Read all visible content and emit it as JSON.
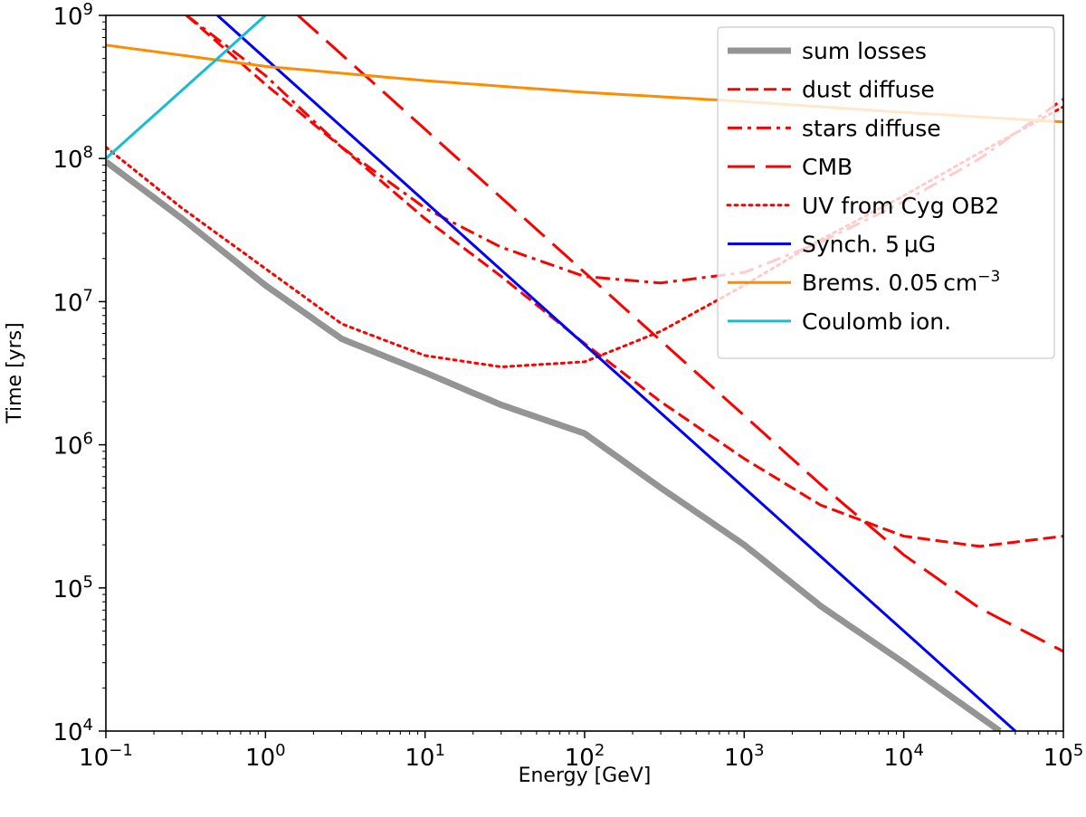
{
  "chart_data": {
    "type": "line",
    "title": "",
    "xlabel": "Energy [GeV]",
    "ylabel": "Time [yrs]",
    "xscale": "log",
    "yscale": "log",
    "xlim": [
      0.1,
      100000
    ],
    "ylim": [
      10000,
      1000000000
    ],
    "grid": false,
    "legend_position": "top-right",
    "x_ticks": [
      {
        "base": "10",
        "exp": "−1",
        "value": 0.1
      },
      {
        "base": "10",
        "exp": "0",
        "value": 1
      },
      {
        "base": "10",
        "exp": "1",
        "value": 10
      },
      {
        "base": "10",
        "exp": "2",
        "value": 100
      },
      {
        "base": "10",
        "exp": "3",
        "value": 1000
      },
      {
        "base": "10",
        "exp": "4",
        "value": 10000
      },
      {
        "base": "10",
        "exp": "5",
        "value": 100000
      }
    ],
    "y_ticks": [
      {
        "base": "10",
        "exp": "4",
        "value": 10000
      },
      {
        "base": "10",
        "exp": "5",
        "value": 100000
      },
      {
        "base": "10",
        "exp": "6",
        "value": 1000000
      },
      {
        "base": "10",
        "exp": "7",
        "value": 10000000
      },
      {
        "base": "10",
        "exp": "8",
        "value": 100000000
      },
      {
        "base": "10",
        "exp": "9",
        "value": 1000000000
      }
    ],
    "series": [
      {
        "name": "sum losses",
        "color": "#949494",
        "style": "solid",
        "width": "thick",
        "x": [
          0.1,
          0.3,
          1,
          3,
          10,
          30,
          100,
          300,
          1000,
          3000,
          10000,
          40000
        ],
        "y": [
          95000000,
          38000000,
          13000000,
          5500000,
          3200000,
          1900000,
          1200000,
          500000,
          200000,
          75000,
          30000,
          10000
        ]
      },
      {
        "name": "dust diffuse",
        "color": "#ff0000",
        "style": "dashed",
        "width": "normal",
        "x": [
          0.32,
          1,
          3,
          10,
          30,
          100,
          300,
          1000,
          3000,
          10000,
          30000,
          100000
        ],
        "y": [
          1000000000,
          330000000,
          120000000,
          38000000,
          15000000,
          5100000,
          2000000,
          800000,
          380000,
          230000,
          195000,
          230000
        ]
      },
      {
        "name": "stars diffuse",
        "color": "#ff0000",
        "style": "dashdot",
        "width": "normal",
        "x": [
          0.32,
          1,
          3,
          10,
          30,
          100,
          300,
          1000,
          3000,
          10000,
          30000,
          100000
        ],
        "y": [
          1000000000,
          380000000,
          120000000,
          45000000,
          24000000,
          15000000,
          13500000,
          16000000,
          26000000,
          50000000,
          100000000,
          260000000
        ]
      },
      {
        "name": "CMB",
        "color": "#ff0000",
        "style": "longdash",
        "width": "normal",
        "x": [
          1.6,
          10,
          100,
          1000,
          3000,
          10000,
          30000,
          100000
        ],
        "y": [
          1000000000,
          160000000,
          16000000,
          1600000,
          530000,
          170000,
          72000,
          36000
        ]
      },
      {
        "name": "UV from Cyg OB2",
        "color": "#ff0000",
        "style": "dotted",
        "width": "normal",
        "x": [
          0.1,
          0.3,
          1,
          3,
          10,
          30,
          100,
          300,
          1000,
          3000,
          10000,
          30000,
          100000
        ],
        "y": [
          120000000,
          45000000,
          17000000,
          7000000,
          4200000,
          3500000,
          3800000,
          6200000,
          13000000,
          27000000,
          55000000,
          110000000,
          230000000
        ]
      },
      {
        "name": "Synch. 5 μG",
        "color": "#0000ff",
        "style": "solid",
        "width": "normal",
        "x": [
          0.5,
          50000
        ],
        "y": [
          1000000000,
          10000
        ]
      },
      {
        "name": "Brems. 0.05 cm−3",
        "color": "#ff8c00",
        "style": "solid",
        "width": "normal",
        "x": [
          0.1,
          1,
          10,
          100,
          1000,
          10000,
          100000
        ],
        "y": [
          620000000,
          440000000,
          350000000,
          290000000,
          250000000,
          210000000,
          180000000
        ]
      },
      {
        "name": "Coulomb ion.",
        "color": "#17becf",
        "style": "solid",
        "width": "normal",
        "x": [
          0.1,
          1
        ],
        "y": [
          100000000,
          1000000000
        ]
      }
    ],
    "legend": [
      {
        "text": "sum losses",
        "sup": ""
      },
      {
        "text": "dust diffuse",
        "sup": ""
      },
      {
        "text": "stars diffuse",
        "sup": ""
      },
      {
        "text": "CMB",
        "sup": ""
      },
      {
        "text": "UV from Cyg OB2",
        "sup": ""
      },
      {
        "text": "Synch. 5 μG",
        "sup": ""
      },
      {
        "text": "Brems. 0.05 cm",
        "sup": "−3"
      },
      {
        "text": "Coulomb ion.",
        "sup": ""
      }
    ]
  }
}
